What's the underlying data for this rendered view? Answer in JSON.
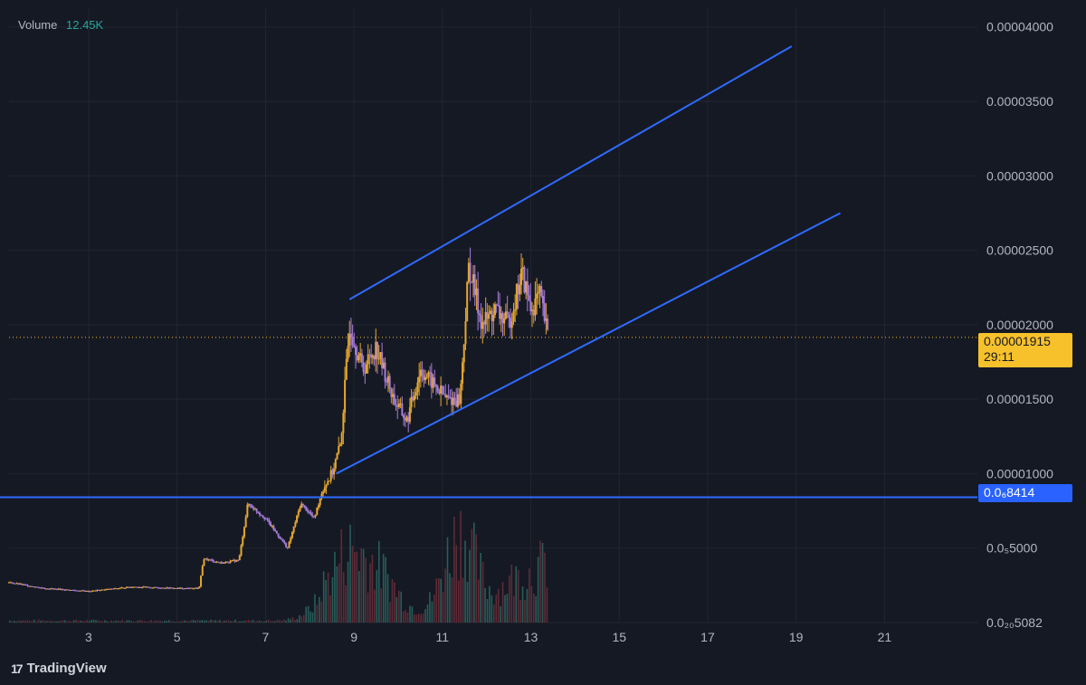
{
  "volume_legend": {
    "label": "Volume",
    "value": "12.45K"
  },
  "price_tags": {
    "current_price": "0.00001915",
    "countdown": "29:11",
    "level_price": "0.0₆8414"
  },
  "brand": {
    "icon": "tradingview-logo-icon",
    "name": "TradingView"
  },
  "colors": {
    "background": "#151924",
    "grid": "#22262f",
    "candle": "#e5a82e",
    "wick_alt": "#a77dda",
    "trendline": "#2f6bff",
    "current_price": "#f7c12c",
    "volume_bar": "#2b6a63"
  },
  "chart_data": {
    "type": "candlestick",
    "y_axis": {
      "ticks": [
        {
          "value": 4e-05,
          "label": "0.00004000"
        },
        {
          "value": 3.5e-05,
          "label": "0.00003500"
        },
        {
          "value": 3e-05,
          "label": "0.00003000"
        },
        {
          "value": 2.5e-05,
          "label": "0.00002500"
        },
        {
          "value": 2e-05,
          "label": "0.00002000"
        },
        {
          "value": 1.5e-05,
          "label": "0.00001500"
        },
        {
          "value": 1e-05,
          "label": "0.00001000"
        },
        {
          "value": 5e-06,
          "label": "0.0₅5000"
        },
        {
          "value": 5.082e-10,
          "label": "0.0₂₀5082"
        }
      ],
      "range": [
        0.0,
        4.12e-05
      ]
    },
    "x_axis": {
      "ticks": [
        {
          "day": 3,
          "label": "3"
        },
        {
          "day": 5,
          "label": "5"
        },
        {
          "day": 7,
          "label": "7"
        },
        {
          "day": 9,
          "label": "9"
        },
        {
          "day": 11,
          "label": "11"
        },
        {
          "day": 13,
          "label": "13"
        },
        {
          "day": 15,
          "label": "15"
        },
        {
          "day": 17,
          "label": "17"
        },
        {
          "day": 19,
          "label": "19"
        },
        {
          "day": 21,
          "label": "21"
        }
      ],
      "range": [
        1.2,
        23.1
      ]
    },
    "price_path": [
      [
        1.2,
        2.7e-06
      ],
      [
        2.0,
        2.3e-06
      ],
      [
        3.0,
        2.1e-06
      ],
      [
        4.0,
        2.4e-06
      ],
      [
        5.0,
        2.3e-06
      ],
      [
        5.5,
        2.3e-06
      ],
      [
        5.6,
        4.3e-06
      ],
      [
        6.0,
        4e-06
      ],
      [
        6.4,
        4.2e-06
      ],
      [
        6.6,
        8e-06
      ],
      [
        7.0,
        7e-06
      ],
      [
        7.5,
        5e-06
      ],
      [
        7.8,
        8e-06
      ],
      [
        8.1,
        7e-06
      ],
      [
        8.3,
        9e-06
      ],
      [
        8.5,
        1e-05
      ],
      [
        8.7,
        1.2e-05
      ],
      [
        8.9,
        2e-05
      ],
      [
        9.2,
        1.7e-05
      ],
      [
        9.5,
        1.85e-05
      ],
      [
        9.9,
        1.5e-05
      ],
      [
        10.2,
        1.35e-05
      ],
      [
        10.5,
        1.7e-05
      ],
      [
        10.8,
        1.6e-05
      ],
      [
        11.1,
        1.5e-05
      ],
      [
        11.4,
        1.5e-05
      ],
      [
        11.6,
        2.4e-05
      ],
      [
        11.9,
        2e-05
      ],
      [
        12.2,
        2.1e-05
      ],
      [
        12.5,
        2e-05
      ],
      [
        12.8,
        2.35e-05
      ],
      [
        13.0,
        2.1e-05
      ],
      [
        13.2,
        2.2e-05
      ],
      [
        13.4,
        1.9e-05
      ]
    ],
    "current_price_line": 1.915e-05,
    "horizontal_level": 8.414e-06,
    "channel_upper": [
      [
        8.9,
        2.17e-05
      ],
      [
        18.9,
        3.87e-05
      ]
    ],
    "channel_lower": [
      [
        8.6,
        1e-05
      ],
      [
        20.0,
        2.75e-05
      ]
    ],
    "volume_peaks": [
      [
        8.3,
        0.15
      ],
      [
        8.9,
        0.55
      ],
      [
        9.6,
        0.35
      ],
      [
        11.4,
        0.8
      ],
      [
        12.6,
        0.3
      ],
      [
        13.4,
        0.45
      ]
    ]
  }
}
